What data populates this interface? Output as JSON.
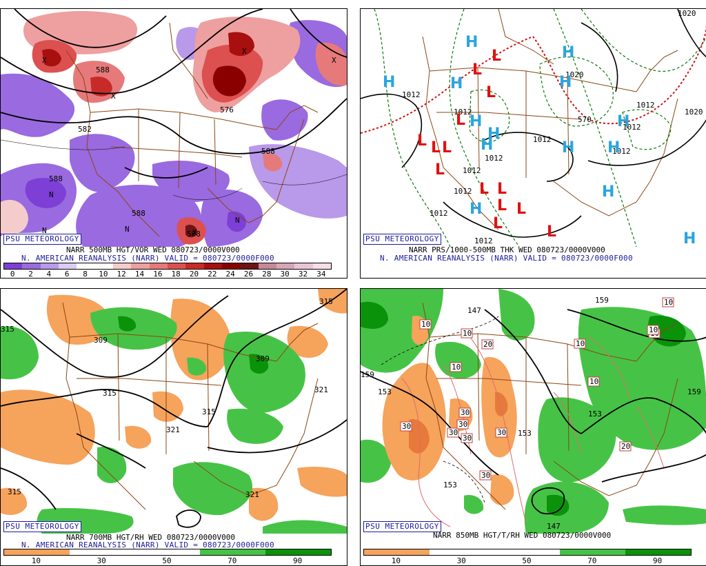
{
  "brand": "PSU METEOROLOGY",
  "panels": [
    {
      "caption1": "NARR 500MB HGT/VOR WED 080723/0000V000",
      "caption2": "N. AMERICAN REANALYSIS (NARR) VALID = 080723/0000F000",
      "colorbar_labels": [
        "0",
        "2",
        "4",
        "6",
        "8",
        "10",
        "12",
        "14",
        "16",
        "18",
        "20",
        "22",
        "24",
        "26",
        "28",
        "30",
        "32",
        "34"
      ],
      "colorbar_colors": [
        "#7d3fd6",
        "#9a6ae0",
        "#b999ea",
        "#dccbf4",
        "#ffffff",
        "#ffffff",
        "#f5cccc",
        "#ee9f9f",
        "#e67a7a",
        "#dc5050",
        "#c82a2a",
        "#a80f0f",
        "#8a0000",
        "#6d1515",
        "#c48a9a",
        "#d7a6b8",
        "#e9c5d4",
        "#f6dde8"
      ],
      "contours": [
        "588",
        "582",
        "576",
        "588",
        "588",
        "588",
        "588"
      ],
      "markers": [
        "N",
        "N",
        "N",
        "N",
        "X",
        "X",
        "X",
        "X",
        "X"
      ]
    },
    {
      "caption1": "NARR PRS/1000-500MB THK WED 080723/0000V000",
      "caption2": "N. AMERICAN REANALYSIS (NARR) VALID = 080723/0000F000",
      "contours": [
        "1020",
        "1012",
        "1012",
        "1012",
        "1012",
        "1012",
        "1012",
        "1012",
        "1012",
        "1020",
        "1012",
        "570",
        "1012",
        "1012",
        "1020"
      ],
      "highs": [
        "H",
        "H",
        "H",
        "H",
        "H",
        "H",
        "H",
        "H",
        "H",
        "H",
        "H",
        "H",
        "H",
        "H"
      ],
      "lows": [
        "L",
        "L",
        "L",
        "L",
        "L",
        "L",
        "L",
        "L",
        "L",
        "L",
        "L",
        "L",
        "L",
        "L"
      ]
    },
    {
      "caption1": "NARR 700MB HGT/RH WED 080723/0000V000",
      "caption2": "N. AMERICAN REANALYSIS (NARR) VALID = 080723/0000F000",
      "colorbar_labels": [
        "10",
        "30",
        "50",
        "70",
        "90"
      ],
      "colorbar_colors": [
        "#f6a35c",
        "#ffffff",
        "#ffffff",
        "#46c346",
        "#0a930a"
      ],
      "contours": [
        "315",
        "309",
        "315",
        "309",
        "315",
        "321",
        "321",
        "315",
        "321",
        "315"
      ]
    },
    {
      "caption1": "NARR 850MB HGT/T/RH WED 080723/0000V000",
      "caption2": "",
      "colorbar_labels": [
        "10",
        "30",
        "50",
        "70",
        "90"
      ],
      "colorbar_colors": [
        "#f6a35c",
        "#ffffff",
        "#ffffff",
        "#46c346",
        "#0a930a"
      ],
      "contours": [
        "159",
        "147",
        "159",
        "153",
        "153",
        "153",
        "159",
        "147",
        "153"
      ],
      "temps": [
        "10",
        "10",
        "20",
        "10",
        "10",
        "10",
        "10",
        "10",
        "10",
        "30",
        "30",
        "30",
        "30",
        "30",
        "30",
        "20",
        "30"
      ]
    }
  ]
}
